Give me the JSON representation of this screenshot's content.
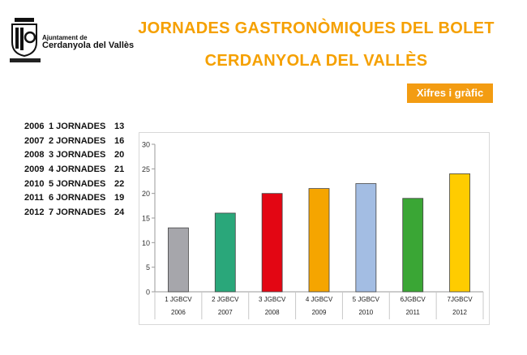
{
  "header": {
    "logo": {
      "line1": "Ajuntament de",
      "line2": "Cerdanyola del Vallès"
    },
    "title_line1": "JORNADES GASTRONÒMIQUES DEL BOLET",
    "title_line2": "CERDANYOLA DEL VALLÈS",
    "figures_button": "Xifres i gràfic"
  },
  "list": [
    {
      "year": "2006",
      "edition": "1 JORNADES",
      "count": "13"
    },
    {
      "year": "2007",
      "edition": "2 JORNADES",
      "count": "16"
    },
    {
      "year": "2008",
      "edition": "3 JORNADES",
      "count": "20"
    },
    {
      "year": "2009",
      "edition": "4 JORNADES",
      "count": "21"
    },
    {
      "year": "2010",
      "edition": "5 JORNADES",
      "count": "22"
    },
    {
      "year": "2011",
      "edition": "6 JORNADES",
      "count": "19"
    },
    {
      "year": "2012",
      "edition": "7 JORNADES",
      "count": "24"
    }
  ],
  "chart_data": {
    "type": "bar",
    "categories": [
      "1 JGBCV",
      "2 JGBCV",
      "3 JGBCV",
      "4 JGBCV",
      "5 JGBCV",
      "6JGBCV",
      "7JGBCV"
    ],
    "categories2": [
      "2006",
      "2007",
      "2008",
      "2009",
      "2010",
      "2011",
      "2012"
    ],
    "values": [
      13,
      16,
      20,
      21,
      22,
      19,
      24
    ],
    "colors": [
      "#a6a6ab",
      "#2aa77a",
      "#e30613",
      "#f5a500",
      "#a3bde3",
      "#3aa635",
      "#ffcc00"
    ],
    "yticks": [
      0,
      5,
      10,
      15,
      20,
      25,
      30
    ],
    "ylim": [
      0,
      30
    ],
    "grid": false,
    "legend": "none"
  }
}
